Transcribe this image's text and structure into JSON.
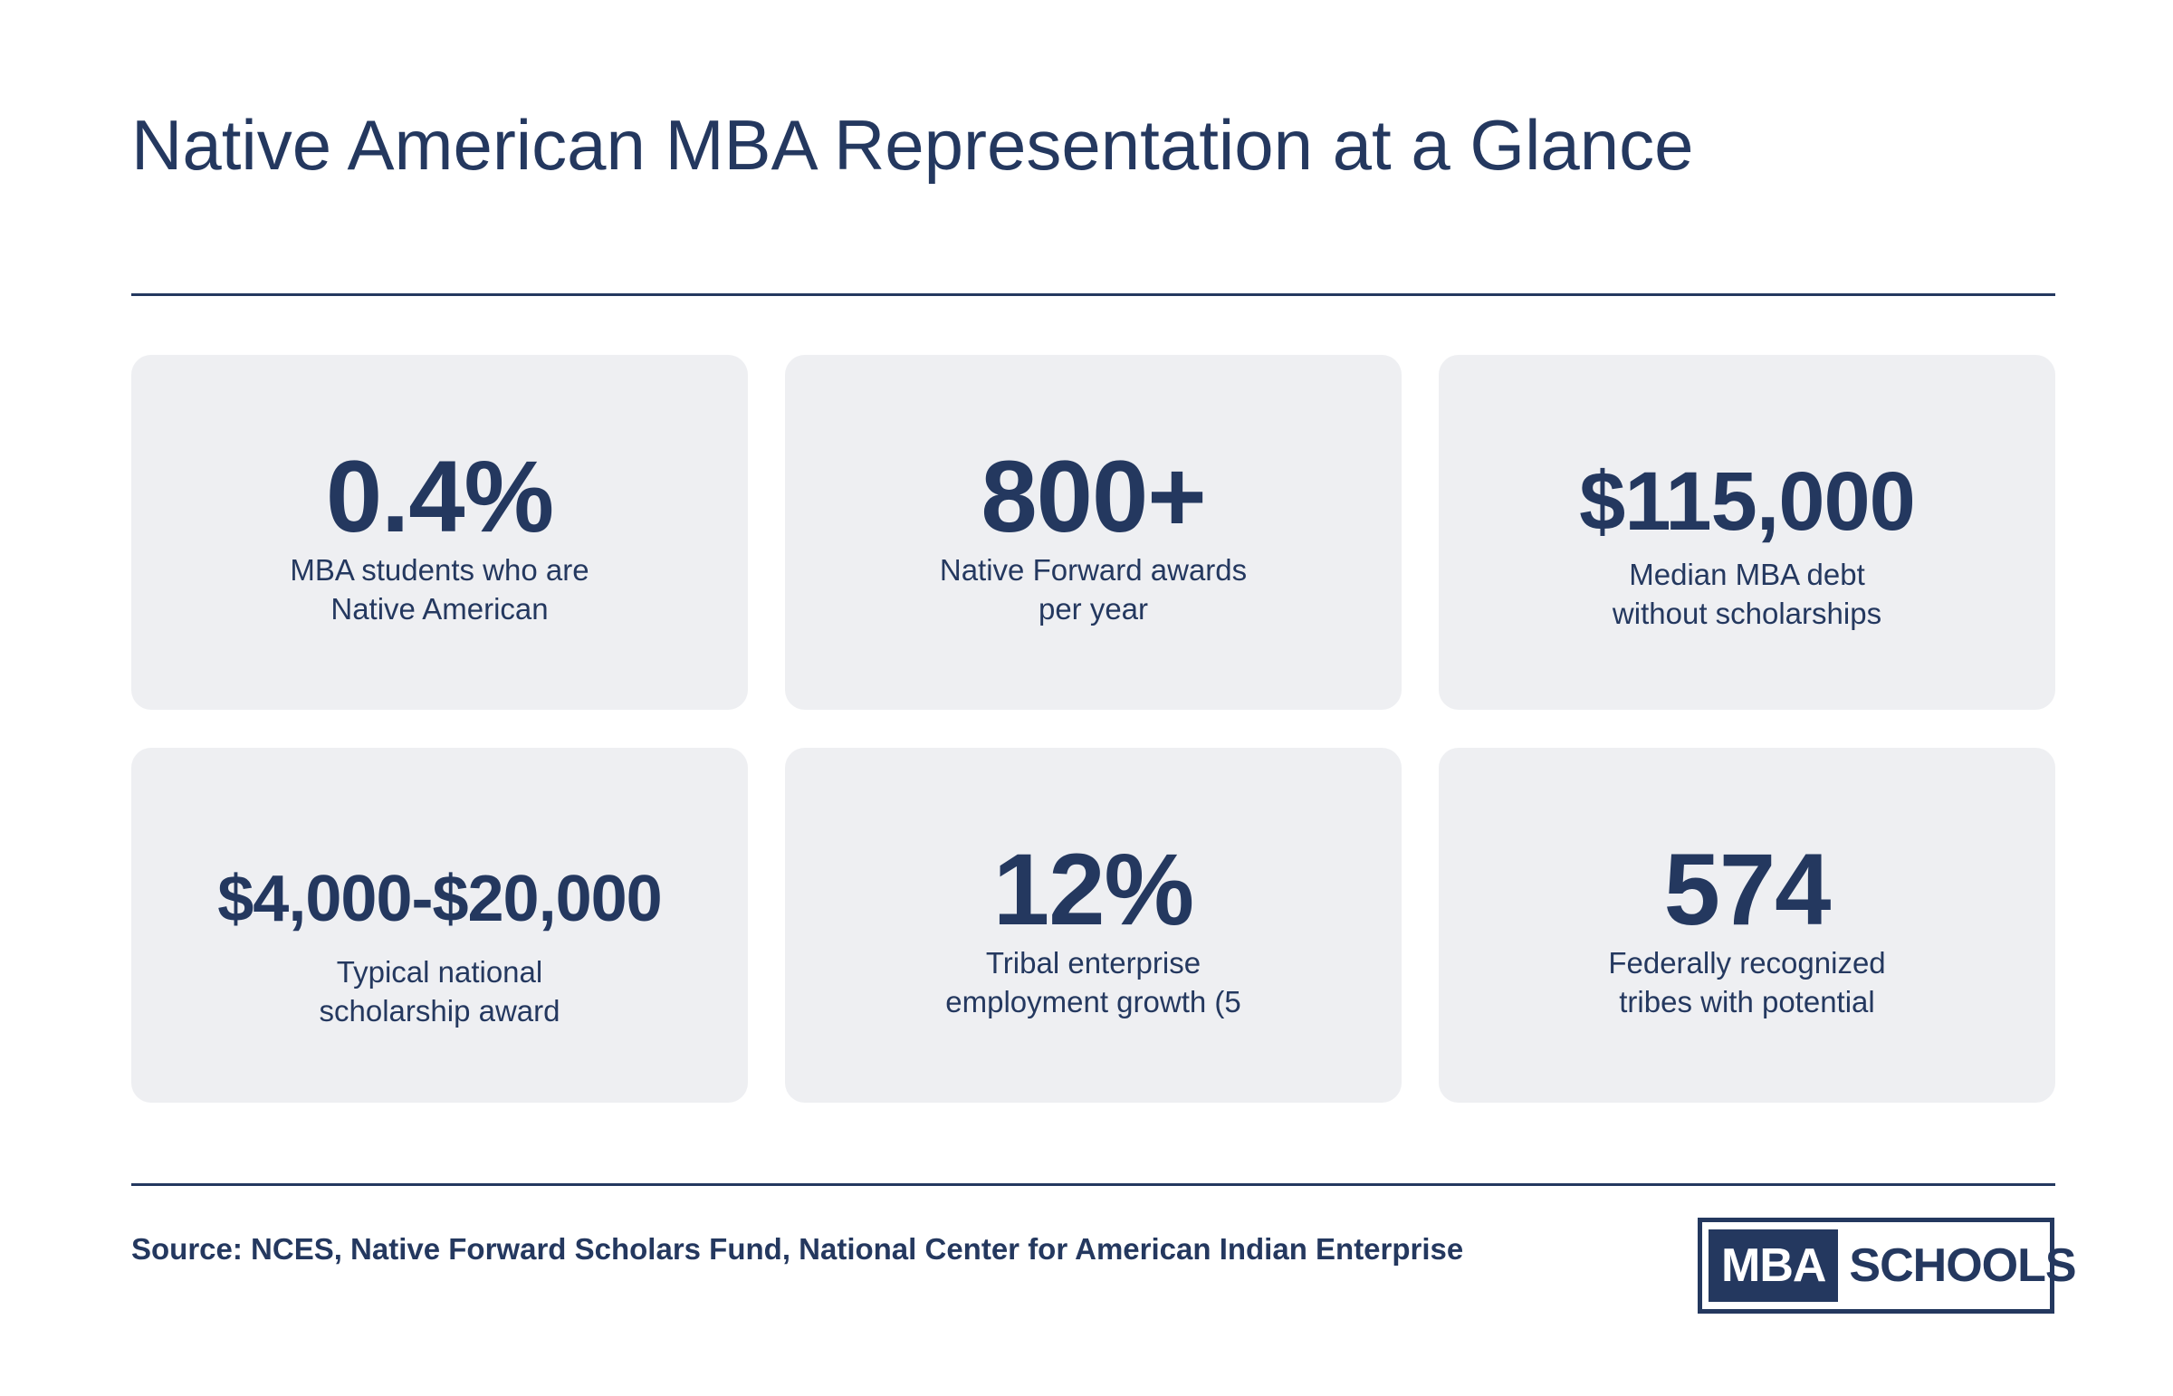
{
  "title": "Native American MBA Representation at a Glance",
  "stats": [
    {
      "value": "0.4%",
      "label": "MBA students who are\nNative American"
    },
    {
      "value": "800+",
      "label": "Native Forward awards\nper year"
    },
    {
      "value": "$115,000",
      "label": "Median MBA debt\nwithout scholarships"
    },
    {
      "value": "$4,000-$20,000",
      "label": "Typical national\nscholarship award"
    },
    {
      "value": "12%",
      "label": "Tribal enterprise\nemployment growth (5"
    },
    {
      "value": "574",
      "label": "Federally recognized\ntribes with potential"
    }
  ],
  "source": "Source: NCES, Native Forward Scholars Fund, National Center for American Indian Enterprise",
  "logo": {
    "left": "MBA",
    "right": "SCHOOLS"
  },
  "colors": {
    "primary": "#24385f",
    "card_background": "#eeeff2",
    "page_background": "#ffffff"
  }
}
